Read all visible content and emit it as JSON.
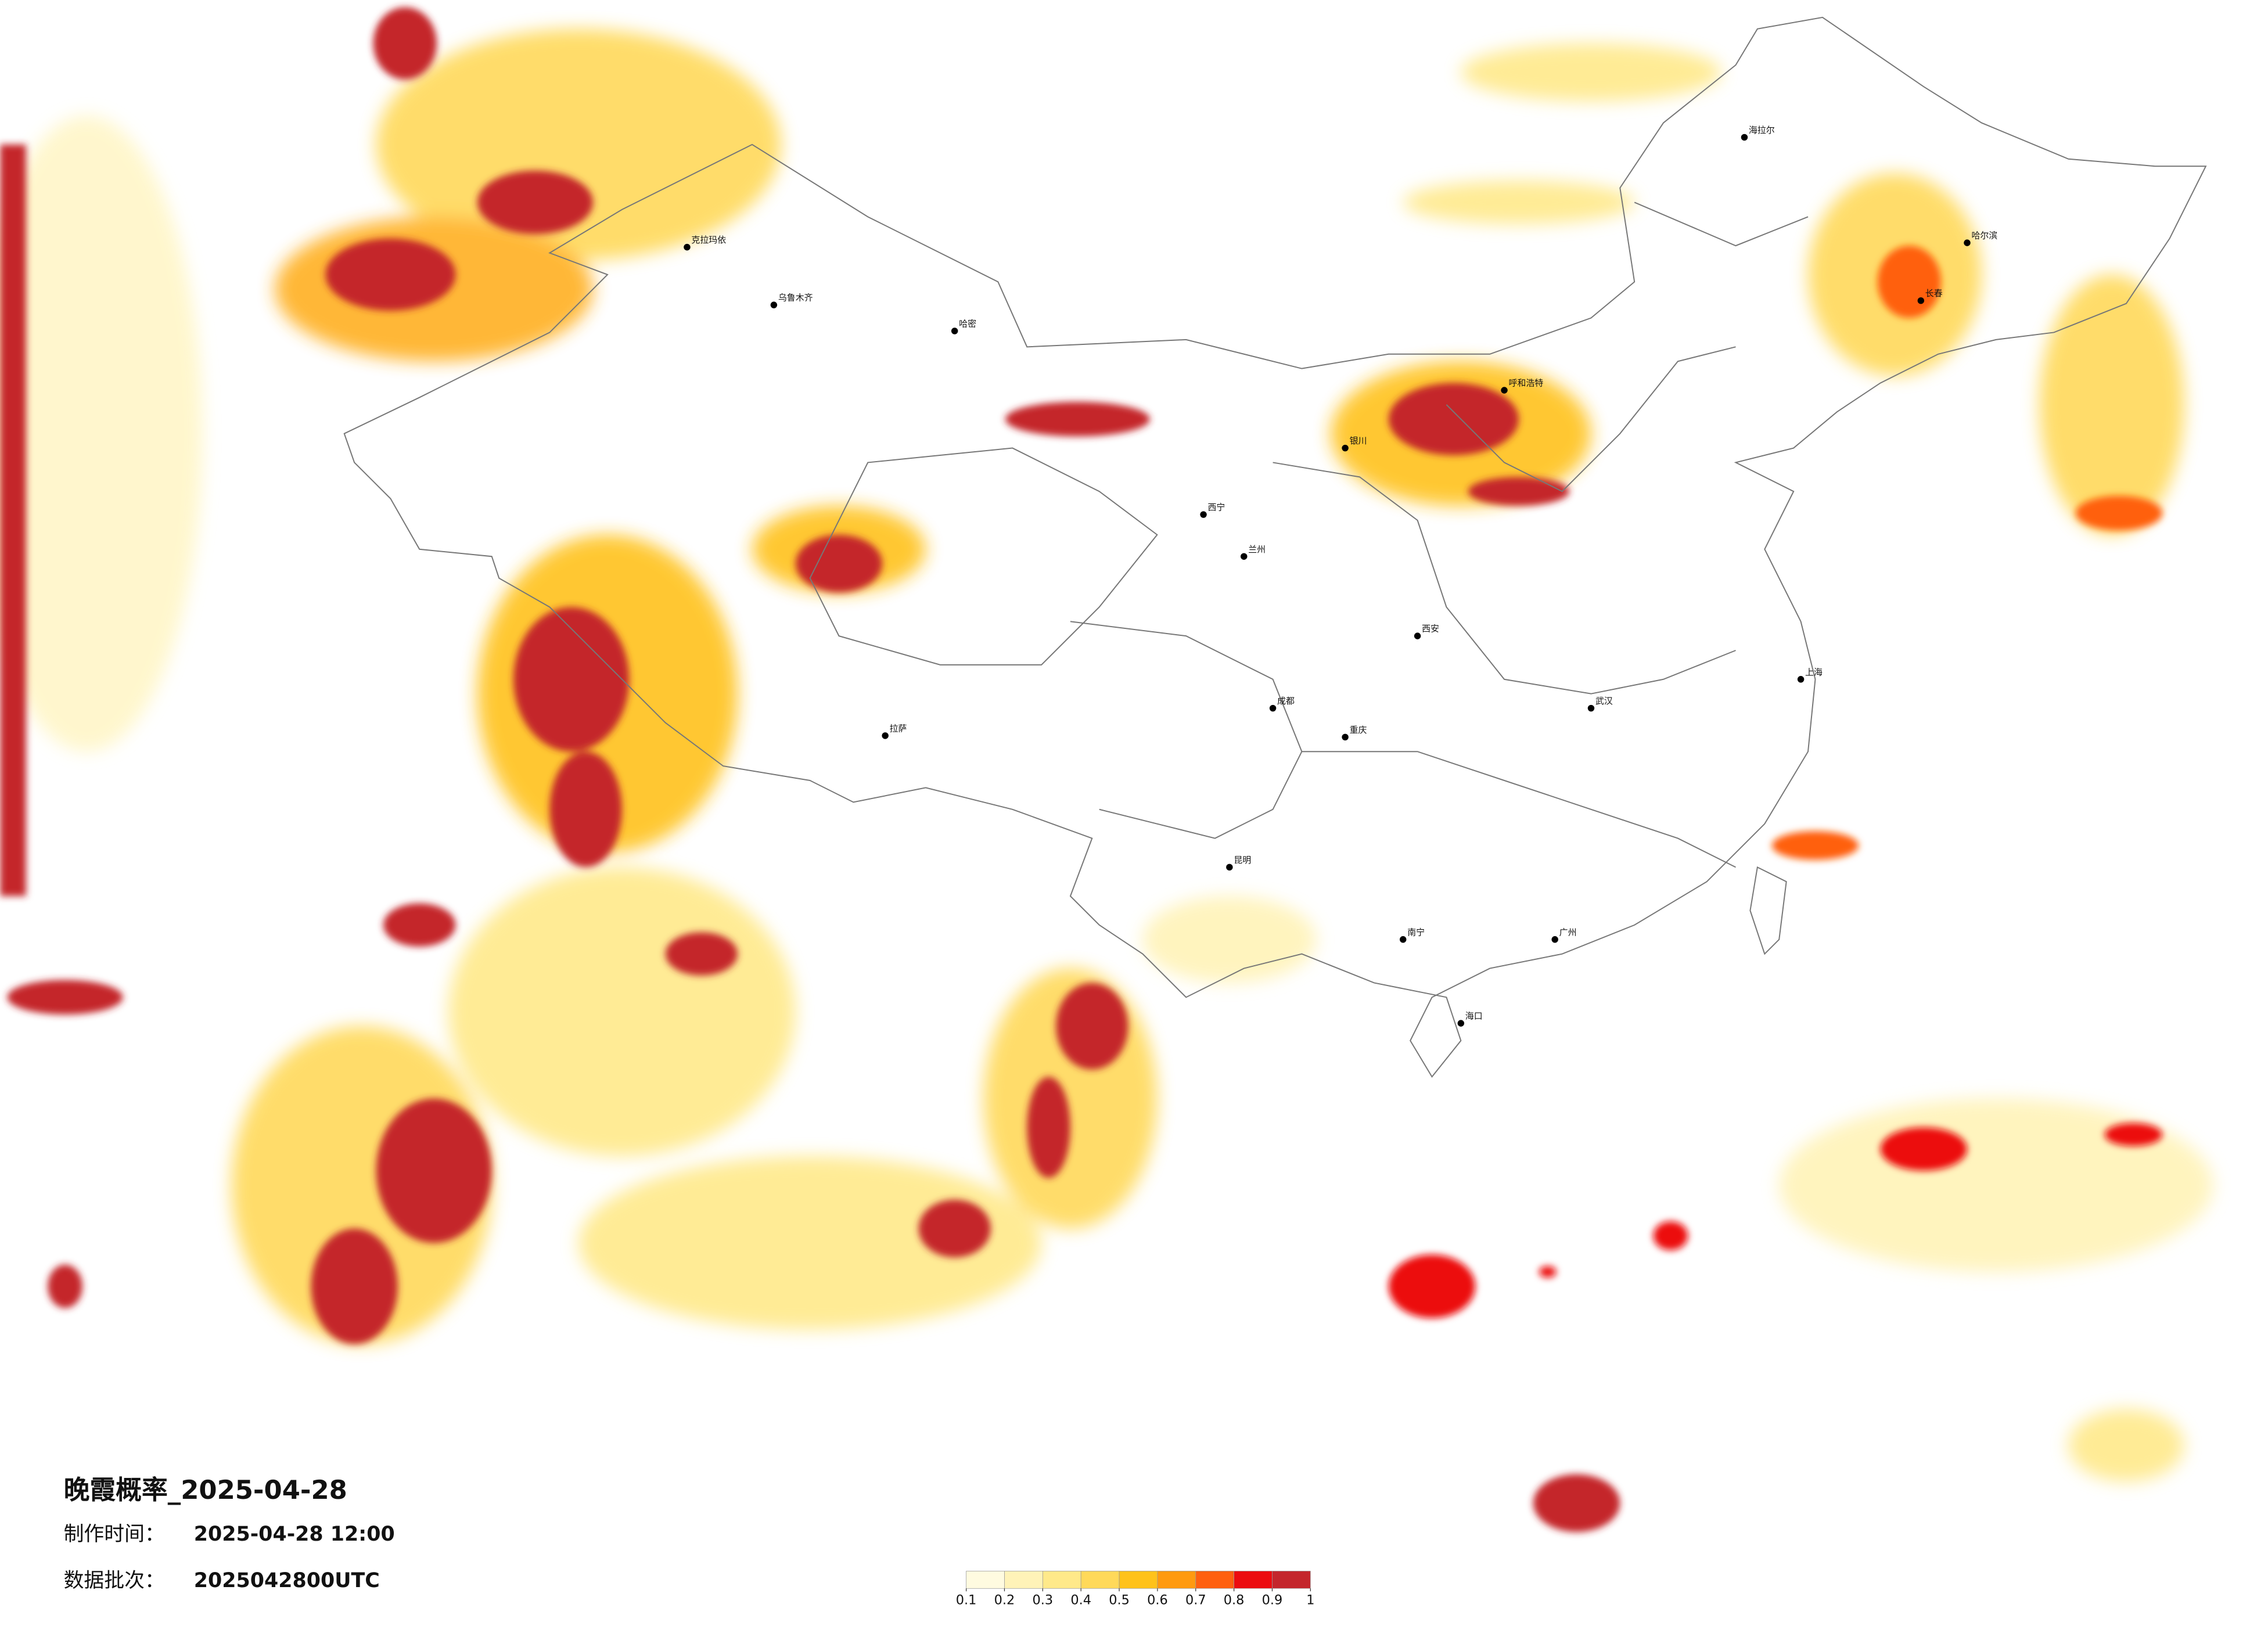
{
  "header": {
    "title": "晚霞概率_2025-04-28",
    "time_label": "制作时间：",
    "time_value": "2025-04-28 12:00",
    "batch_label": "数据批次：",
    "batch_value": "2025042800UTC"
  },
  "legend": {
    "colors": [
      "#fffbe0",
      "#fff3b8",
      "#ffe98a",
      "#ffd95a",
      "#ffc21a",
      "#ff9a10",
      "#ff6010",
      "#ec0c10",
      "#c4262c"
    ],
    "ticks": [
      0.1,
      0.2,
      0.3,
      0.4,
      0.5,
      0.6,
      0.7,
      0.8,
      0.9,
      1
    ]
  },
  "cities": [
    "海拉尔",
    "哈尔滨",
    "长春",
    "克拉玛依",
    "乌鲁木齐",
    "哈密",
    "拉萨",
    "西宁",
    "兰州",
    "银川",
    "呼和浩特",
    "西安",
    "成都",
    "重庆",
    "昆明",
    "南宁",
    "广州",
    "武汉",
    "上海",
    "海口"
  ]
}
